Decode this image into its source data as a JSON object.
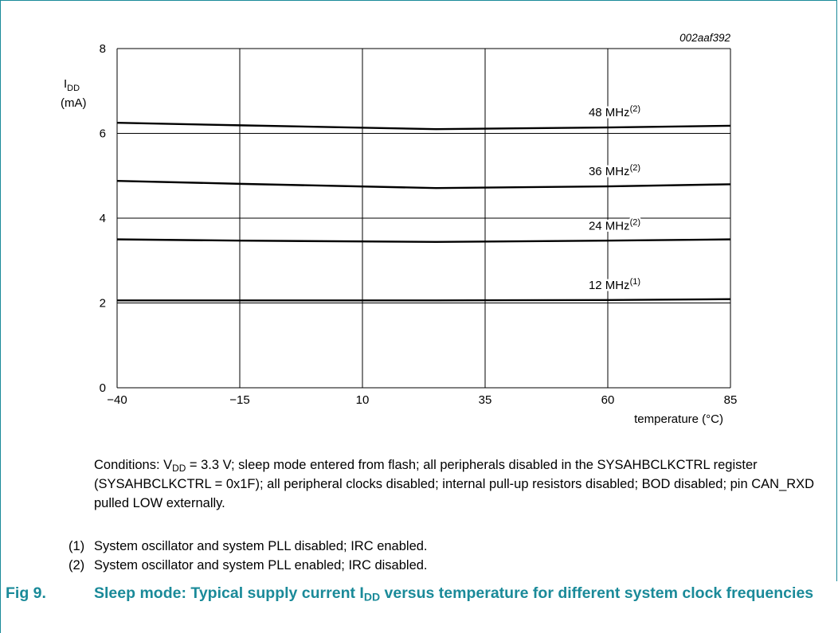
{
  "figure_id": "002aaf392",
  "chart_data": {
    "type": "line",
    "x_tick_labels": [
      "−40",
      "−15",
      "10",
      "35",
      "60",
      "85"
    ],
    "x_ticks": [
      -40,
      -15,
      10,
      35,
      60,
      85
    ],
    "y_ticks": [
      0,
      2,
      4,
      6,
      8
    ],
    "xlim": [
      -40,
      85
    ],
    "ylim": [
      0,
      8
    ],
    "grid": true,
    "ylabel": {
      "symbol": "I",
      "subscript": "DD",
      "unit": "(mA)"
    },
    "xlabel": "temperature (°C)",
    "series": [
      {
        "name": "48 MHz",
        "note": "(2)",
        "x": [
          -40,
          -15,
          25,
          60,
          85
        ],
        "y": [
          6.25,
          6.19,
          6.1,
          6.14,
          6.18
        ],
        "label_x": 57
      },
      {
        "name": "36 MHz",
        "note": "(2)",
        "x": [
          -40,
          -15,
          25,
          60,
          85
        ],
        "y": [
          4.88,
          4.81,
          4.71,
          4.75,
          4.8
        ],
        "label_x": 57
      },
      {
        "name": "24 MHz",
        "note": "(2)",
        "x": [
          -40,
          -15,
          25,
          60,
          85
        ],
        "y": [
          3.5,
          3.47,
          3.44,
          3.47,
          3.5
        ],
        "label_x": 57
      },
      {
        "name": "12 MHz",
        "note": "(1)",
        "x": [
          -40,
          -15,
          25,
          60,
          85
        ],
        "y": [
          2.06,
          2.06,
          2.06,
          2.07,
          2.09
        ],
        "label_x": 57
      }
    ]
  },
  "conditions": {
    "prefix": "Conditions: V",
    "sub": "DD",
    "rest": " = 3.3 V; sleep mode entered from flash; all peripherals disabled in the SYSAHBCLKCTRL register (SYSAHBCLKCTRL = 0x1F); all peripheral clocks disabled; internal pull-up resistors disabled; BOD disabled; pin CAN_RXD pulled LOW externally."
  },
  "notes": [
    {
      "num": "(1)",
      "text": "System oscillator and system PLL disabled; IRC enabled."
    },
    {
      "num": "(2)",
      "text": "System oscillator and system PLL enabled; IRC disabled."
    }
  ],
  "caption": {
    "fig": "Fig 9.",
    "pre": "Sleep mode: Typical supply current I",
    "sub": "DD",
    "post": " versus temperature for different system clock frequencies"
  },
  "colors": {
    "accent": "#1a8a99",
    "line": "#000000",
    "grid": "#000000"
  }
}
